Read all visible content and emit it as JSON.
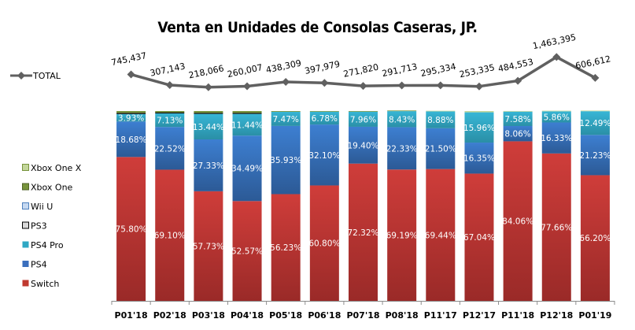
{
  "chart_data": {
    "type": "bar",
    "stacked": true,
    "percent_stacked": true,
    "title": "Venta en Unidades de Consolas Caseras, JP.",
    "xlabel": "",
    "ylabel": "",
    "ylim": [
      0,
      100
    ],
    "grid": false,
    "legend_position": "left",
    "categories": [
      "P01'18",
      "P02'18",
      "P03'18",
      "P04'18",
      "P05'18",
      "P06'18",
      "P07'18",
      "P08'18",
      "P11'17",
      "P12'17",
      "P11'18",
      "P12'18",
      "P01'19"
    ],
    "series": [
      {
        "name": "Switch",
        "color": "#c0392f",
        "values": [
          75.8,
          69.1,
          57.73,
          52.57,
          56.23,
          60.8,
          72.32,
          69.19,
          69.44,
          67.04,
          84.06,
          77.66,
          66.2
        ],
        "labeled": true
      },
      {
        "name": "PS4",
        "color": "#3a6fbd",
        "values": [
          18.68,
          22.52,
          27.33,
          34.49,
          35.93,
          32.1,
          19.4,
          22.33,
          21.5,
          16.35,
          8.06,
          16.33,
          21.23
        ],
        "labeled": true
      },
      {
        "name": "PS4 Pro",
        "color": "#2fa8c4",
        "values": [
          3.93,
          7.13,
          13.44,
          11.44,
          7.47,
          6.78,
          7.96,
          8.43,
          8.88,
          15.96,
          7.58,
          5.86,
          12.49
        ],
        "labeled": true
      },
      {
        "name": "PS3",
        "color": "#d9d9d9",
        "values": [
          0.6,
          0.5,
          0.5,
          0.5,
          0,
          0,
          0,
          0,
          0,
          0,
          0,
          0,
          0
        ],
        "labeled": false
      },
      {
        "name": "Wii U",
        "color": "#c6d9f1",
        "values": [
          0,
          0,
          0,
          0,
          0,
          0,
          0,
          0,
          0,
          0,
          0,
          0,
          0
        ],
        "labeled": false
      },
      {
        "name": "Xbox One",
        "color": "#77933c",
        "values": [
          0.99,
          0.75,
          1.0,
          1.0,
          0.37,
          0.32,
          0.32,
          0.05,
          0,
          0,
          0,
          0,
          0
        ],
        "labeled": false
      },
      {
        "name": "Xbox One X",
        "color": "#c3d69b",
        "values": [
          0,
          0,
          0,
          0,
          0,
          0,
          0,
          0,
          0.18,
          0.65,
          0.3,
          0.15,
          0.08
        ],
        "labeled": false
      }
    ],
    "line_series": {
      "name": "TOTAL",
      "color": "#606060",
      "values": [
        745437,
        307143,
        218066,
        260007,
        438309,
        397979,
        271820,
        291713,
        295334,
        253335,
        484553,
        1463395,
        606612
      ],
      "labels": [
        "745,437",
        "307,143",
        "218,066",
        "260,007",
        "438,309",
        "397,979",
        "271,820",
        "291,713",
        "295,334",
        "253,335",
        "484,553",
        "1,463,395",
        "606,612"
      ]
    },
    "legend": [
      "TOTAL",
      "Xbox One X",
      "Xbox One",
      "Wii U",
      "PS3",
      "PS4 Pro",
      "PS4",
      "Switch"
    ]
  }
}
